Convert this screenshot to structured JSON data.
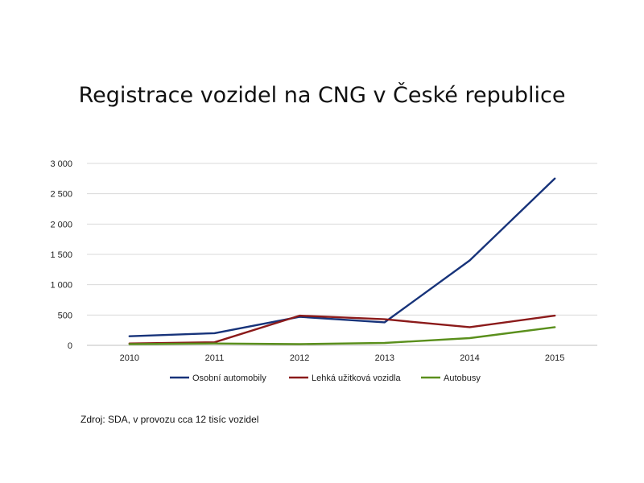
{
  "chart_data": {
    "type": "line",
    "title": "Registrace vozidel na CNG v České republice",
    "categories": [
      "2010",
      "2011",
      "2012",
      "2013",
      "2014",
      "2015"
    ],
    "y_ticks": [
      "0",
      "500",
      "1 000",
      "1 500",
      "2 000",
      "2 500",
      "3 000"
    ],
    "ylim": [
      0,
      3000
    ],
    "grid": true,
    "legend_position": "bottom",
    "series": [
      {
        "name": "Osobní automobily",
        "color": "#17337a",
        "values": [
          150,
          200,
          470,
          380,
          1400,
          2750
        ]
      },
      {
        "name": "Lehká užitková vozidla",
        "color": "#8b1a1a",
        "values": [
          30,
          50,
          490,
          430,
          300,
          490
        ]
      },
      {
        "name": "Autobusy",
        "color": "#5a8f1c",
        "values": [
          20,
          30,
          20,
          40,
          120,
          300
        ]
      }
    ],
    "source": "Zdroj: SDA, v provozu cca 12 tisíc vozidel"
  }
}
